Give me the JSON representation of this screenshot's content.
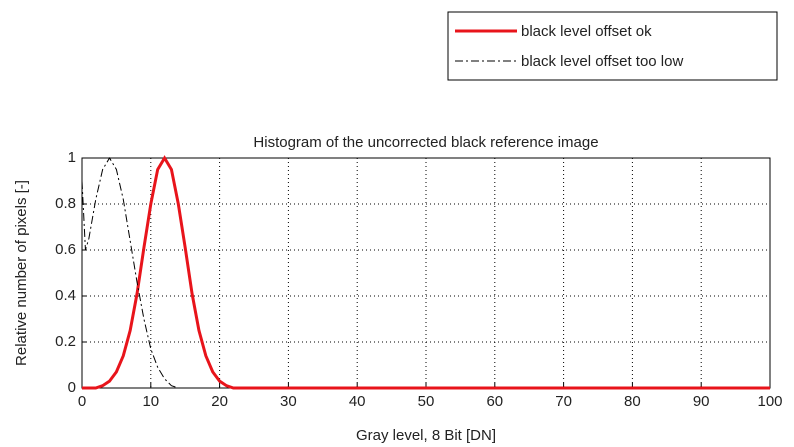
{
  "chart_data": {
    "type": "line",
    "title": "Histogram of the uncorrected black reference image",
    "x_label": "Gray level, 8 Bit [DN]",
    "y_label": "Relative number of pixels [-]",
    "xlim": [
      0,
      100
    ],
    "ylim": [
      0,
      1
    ],
    "xticks": [
      0,
      10,
      20,
      30,
      40,
      50,
      60,
      70,
      80,
      90,
      100
    ],
    "yticks": [
      0,
      0.2,
      0.4,
      0.6,
      0.8,
      1
    ],
    "grid": true,
    "legend": "top-right",
    "series": [
      {
        "name": "black level offset ok",
        "color": "#e8141b",
        "style": "solid",
        "x": [
          0,
          1,
          2,
          3,
          4,
          5,
          6,
          7,
          8,
          9,
          10,
          11,
          12,
          13,
          14,
          15,
          16,
          17,
          18,
          19,
          20,
          21,
          22,
          23,
          24,
          100
        ],
        "values": [
          0,
          0,
          0,
          0.01,
          0.03,
          0.07,
          0.14,
          0.25,
          0.41,
          0.61,
          0.8,
          0.95,
          1,
          0.95,
          0.8,
          0.61,
          0.41,
          0.25,
          0.14,
          0.07,
          0.03,
          0.01,
          0,
          0,
          0,
          0
        ]
      },
      {
        "name": "black level offset too low",
        "color": "#000000",
        "style": "dashdot",
        "x": [
          0,
          0.5,
          1,
          2,
          3,
          4,
          5,
          6,
          7,
          8,
          9,
          10,
          11,
          12,
          13,
          14
        ],
        "values": [
          0.9,
          0.6,
          0.65,
          0.82,
          0.95,
          1,
          0.95,
          0.82,
          0.64,
          0.46,
          0.3,
          0.17,
          0.09,
          0.04,
          0.01,
          0
        ]
      }
    ]
  }
}
